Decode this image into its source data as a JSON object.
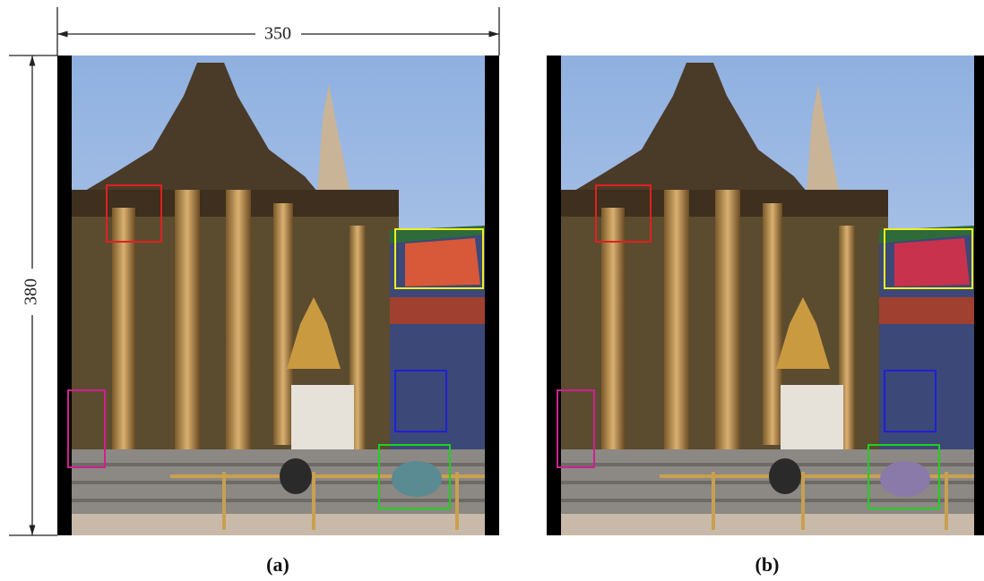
{
  "figure": {
    "width_label": "350",
    "height_label": "380",
    "panels": [
      {
        "label": "(a)"
      },
      {
        "label": "(b)"
      }
    ]
  }
}
